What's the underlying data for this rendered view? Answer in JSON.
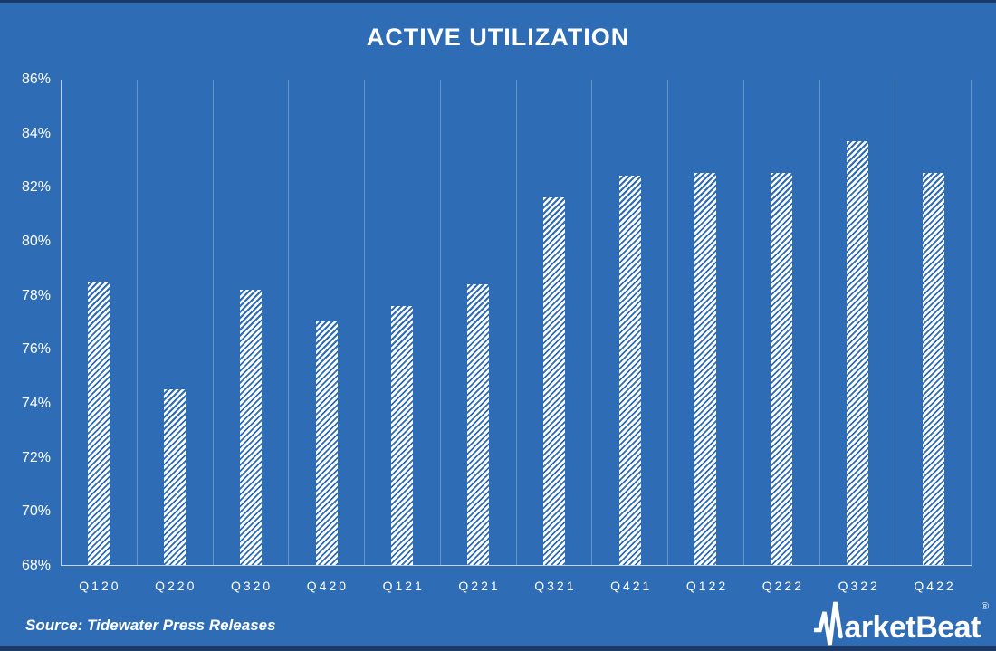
{
  "title": "ACTIVE UTILIZATION",
  "source_note": "Source: Tidewater Press Releases",
  "brand": {
    "name": "MarketBeat",
    "logo_text_after_pulse_m": "arketBeat",
    "registered_mark": "®"
  },
  "colors": {
    "background": "#2E6DB5",
    "bar_fill": "#FFFFFF",
    "gridline": "rgba(255,255,255,0.28)",
    "axis_line": "#C9D3E0",
    "text": "#FFFFFF",
    "edge_band": "#1B3A67"
  },
  "chart_data": {
    "type": "bar",
    "title": "ACTIVE UTILIZATION",
    "categories": [
      "Q120",
      "Q220",
      "Q320",
      "Q420",
      "Q121",
      "Q221",
      "Q321",
      "Q421",
      "Q122",
      "Q222",
      "Q322",
      "Q422"
    ],
    "values": [
      78.5,
      74.5,
      78.2,
      77.0,
      77.6,
      78.4,
      81.6,
      82.4,
      82.5,
      82.5,
      83.7,
      82.5
    ],
    "unit": "%",
    "xlabel": "",
    "ylabel": "",
    "ylim": [
      68,
      86
    ],
    "y_tick_step": 2,
    "y_tick_labels": [
      "86%",
      "84%",
      "82%",
      "80%",
      "78%",
      "76%",
      "74%",
      "72%",
      "70%",
      "68%"
    ],
    "grid": "vertical-only",
    "legend": "none",
    "bar_style": "white-diagonal-hatch"
  }
}
